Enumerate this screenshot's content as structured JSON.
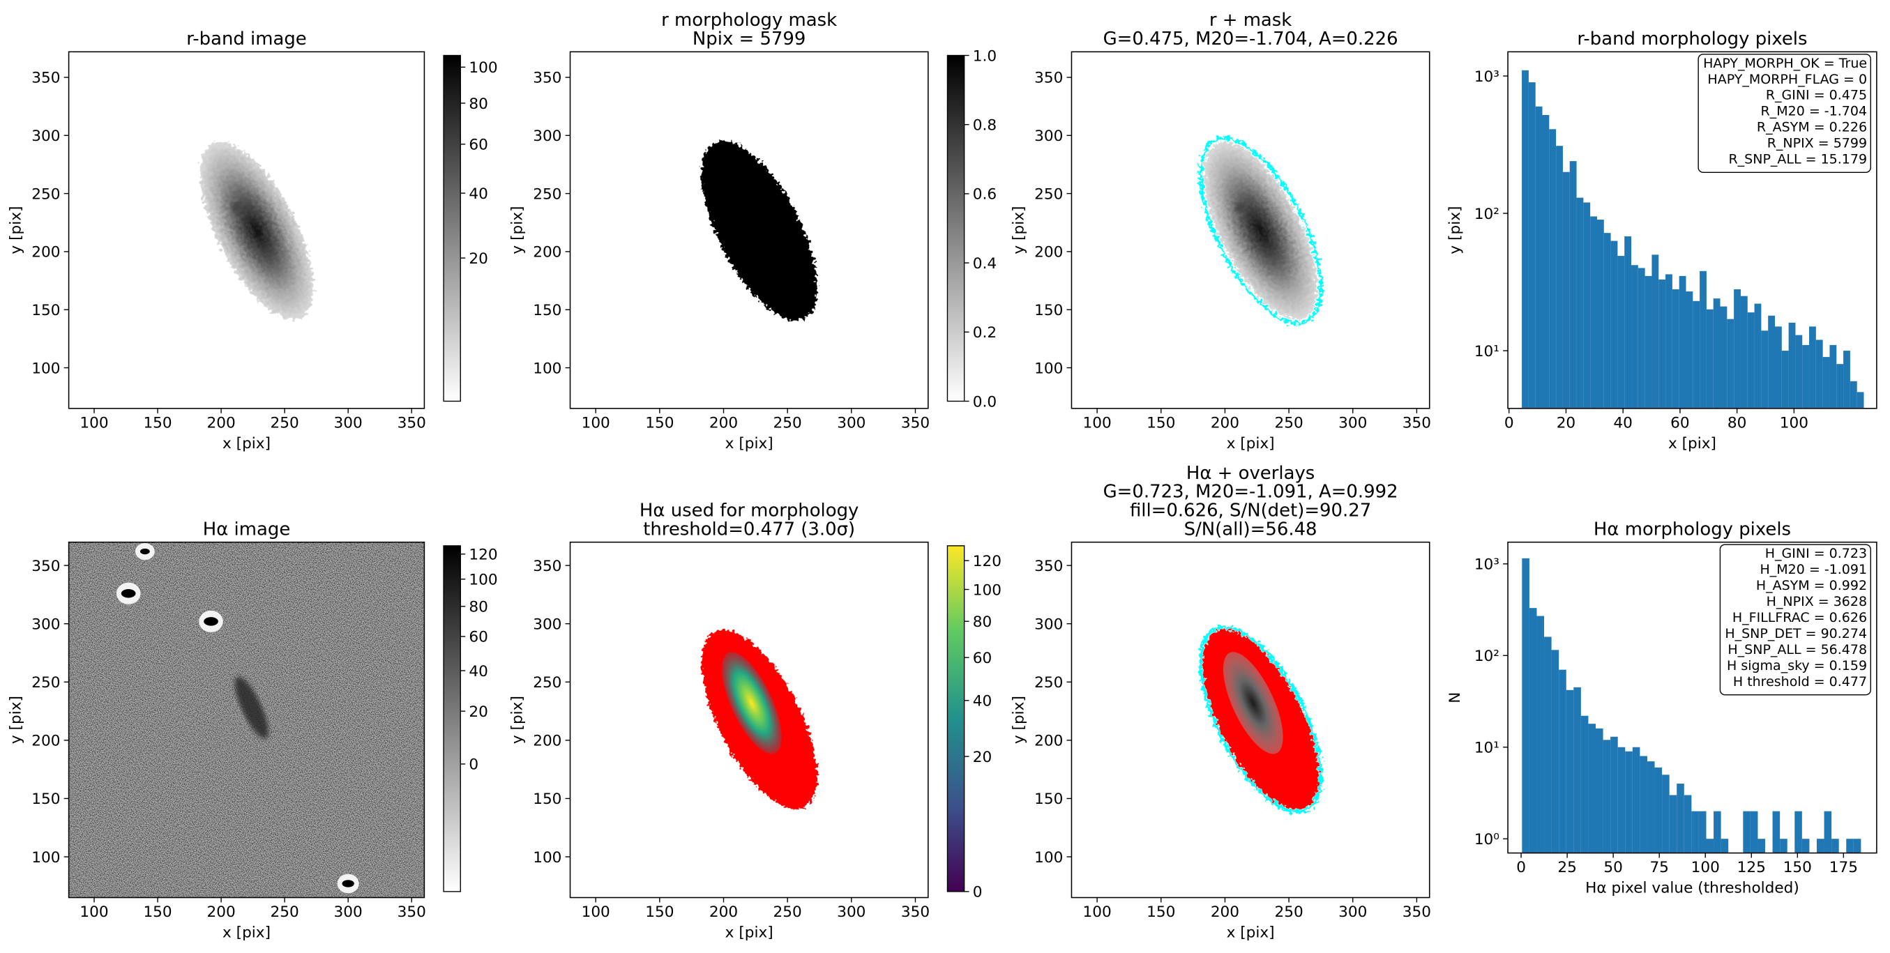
{
  "chart_data": [
    {
      "type": "image",
      "title": [
        "r-band image"
      ],
      "xlabel": "x [pix]",
      "ylabel": "y [pix]",
      "xlim": [
        80,
        360
      ],
      "ylim": [
        65,
        372
      ],
      "xticks": [
        100,
        150,
        200,
        250,
        300,
        350
      ],
      "yticks": [
        100,
        150,
        200,
        250,
        300,
        350
      ],
      "colorbar": {
        "cmap": "gray_r",
        "scale": "sqrt",
        "clim": [
          2,
          107
        ],
        "ticks": [
          20,
          40,
          60,
          80,
          100
        ]
      }
    },
    {
      "type": "image",
      "title": [
        "r morphology mask",
        "Npix = 5799"
      ],
      "xlabel": "x [pix]",
      "ylabel": "y [pix]",
      "xlim": [
        80,
        360
      ],
      "ylim": [
        65,
        372
      ],
      "xticks": [
        100,
        150,
        200,
        250,
        300,
        350
      ],
      "yticks": [
        100,
        150,
        200,
        250,
        300,
        350
      ],
      "colorbar": {
        "cmap": "binary",
        "scale": "linear",
        "clim": [
          0,
          1
        ],
        "ticks": [
          {
            "value": 0,
            "label": "0.0"
          },
          {
            "value": 0.2,
            "label": "0.2"
          },
          {
            "value": 0.4,
            "label": "0.4"
          },
          {
            "value": 0.6,
            "label": "0.6"
          },
          {
            "value": 0.8,
            "label": "0.8"
          },
          {
            "value": 1,
            "label": "1.0"
          }
        ]
      }
    },
    {
      "type": "image",
      "title": [
        "r + mask",
        "G=0.475, M20=-1.704, A=0.226"
      ],
      "xlabel": "x [pix]",
      "ylabel": "y [pix]",
      "xlim": [
        80,
        360
      ],
      "ylim": [
        65,
        372
      ],
      "xticks": [
        100,
        150,
        200,
        250,
        300,
        350
      ],
      "yticks": [
        100,
        150,
        200,
        250,
        300,
        350
      ],
      "overlay_color": "#00ffff"
    },
    {
      "type": "histogram",
      "title": [
        "r-band morphology pixels"
      ],
      "xlabel": "x [pix]",
      "ylabel": "y [pix]",
      "color": "#1f77b4",
      "log_y": true,
      "xlim": [
        -0.4,
        129
      ],
      "ylim": [
        3.8,
        1500
      ],
      "xticks": [
        0,
        20,
        40,
        60,
        80,
        100
      ],
      "yticks": [
        {
          "value": 10,
          "label": "10¹"
        },
        {
          "value": 100,
          "label": "10²"
        },
        {
          "value": 1000,
          "label": "10³"
        }
      ],
      "bins": [
        4.5,
        6.9,
        9.3,
        11.7,
        14.1,
        16.5,
        18.9,
        21.3,
        23.7,
        26.1,
        28.5,
        30.9,
        33.3,
        35.7,
        38.1,
        40.5,
        42.9,
        45.3,
        47.7,
        50.1,
        52.5,
        54.9,
        57.3,
        59.7,
        62.1,
        64.5,
        66.9,
        69.3,
        71.7,
        74.1,
        76.5,
        78.9,
        81.3,
        83.7,
        86.1,
        88.5,
        90.9,
        93.3,
        95.7,
        98.1,
        100.5,
        102.9,
        105.3,
        107.7,
        110.1,
        112.5,
        114.9,
        117.3,
        119.7,
        122.1,
        124.5
      ],
      "counts": [
        1100,
        900,
        600,
        520,
        410,
        310,
        200,
        240,
        130,
        120,
        95,
        90,
        72,
        63,
        49,
        68,
        42,
        40,
        35,
        50,
        33,
        36,
        28,
        35,
        27,
        23,
        38,
        20,
        24,
        21,
        17,
        28,
        25,
        19,
        22,
        14,
        18,
        15,
        10,
        16,
        13,
        11,
        15,
        12,
        9,
        11,
        8,
        10,
        6,
        5
      ],
      "legend_loc": "upper right",
      "annotation": [
        "HAPY_MORPH_OK = True",
        "HAPY_MORPH_FLAG = 0",
        "R_GINI = 0.475",
        "R_M20 = -1.704",
        "R_ASYM = 0.226",
        "R_NPIX = 5799",
        "R_SNP_ALL = 15.179"
      ]
    },
    {
      "type": "image",
      "title": [
        "Hα image"
      ],
      "xlabel": "x [pix]",
      "ylabel": "y [pix]",
      "xlim": [
        80,
        360
      ],
      "ylim": [
        65,
        370
      ],
      "xticks": [
        100,
        150,
        200,
        250,
        300,
        350
      ],
      "yticks": [
        100,
        150,
        200,
        250,
        300,
        350
      ],
      "colorbar": {
        "cmap": "gray_r",
        "scale": "sqrt",
        "clim": [
          -20,
          127
        ],
        "ticks": [
          0,
          20,
          40,
          60,
          80,
          100,
          120
        ]
      }
    },
    {
      "type": "image",
      "title": [
        "Hα used for morphology",
        "threshold=0.477 (3.0σ)"
      ],
      "xlabel": "x [pix]",
      "ylabel": "y [pix]",
      "xlim": [
        80,
        360
      ],
      "ylim": [
        65,
        370
      ],
      "xticks": [
        100,
        150,
        200,
        250,
        300,
        350
      ],
      "yticks": [
        100,
        150,
        200,
        250,
        300,
        350
      ],
      "overlay_color": "#ff0000",
      "colorbar": {
        "cmap": "viridis",
        "scale": "sqrt",
        "clim": [
          0,
          131
        ],
        "ticks": [
          0,
          20,
          40,
          60,
          80,
          100,
          120
        ]
      }
    },
    {
      "type": "image",
      "title": [
        "Hα + overlays",
        "G=0.723, M20=-1.091, A=0.992",
        "fill=0.626, S/N(det)=90.27",
        "S/N(all)=56.48"
      ],
      "xlabel": "x [pix]",
      "ylabel": "y [pix]",
      "xlim": [
        80,
        360
      ],
      "ylim": [
        65,
        370
      ],
      "xticks": [
        100,
        150,
        200,
        250,
        300,
        350
      ],
      "yticks": [
        100,
        150,
        200,
        250,
        300,
        350
      ],
      "overlay_color": "#ff0000"
    },
    {
      "type": "histogram",
      "title": [
        "Hα morphology pixels"
      ],
      "xlabel": "Hα pixel value (thresholded)",
      "ylabel": "N",
      "color": "#1f77b4",
      "log_y": true,
      "xlim": [
        -7.2,
        193
      ],
      "ylim": [
        0.7,
        1726
      ],
      "xticks": [
        0,
        25,
        50,
        75,
        100,
        125,
        150,
        175
      ],
      "yticks": [
        {
          "value": 1,
          "label": "10⁰"
        },
        {
          "value": 10,
          "label": "10¹"
        },
        {
          "value": 100,
          "label": "10²"
        },
        {
          "value": 1000,
          "label": "10³"
        }
      ],
      "bins": [
        0.477,
        4.477,
        8.477,
        12.477,
        16.477,
        20.477,
        24.477,
        28.477,
        32.477,
        36.477,
        40.477,
        44.477,
        48.477,
        52.477,
        56.477,
        60.477,
        64.477,
        68.477,
        72.477,
        76.477,
        80.477,
        84.477,
        88.477,
        92.477,
        96.477,
        100.477,
        104.477,
        108.477,
        112.477,
        116.477,
        120.477,
        124.477,
        128.477,
        132.477,
        136.477,
        140.477,
        144.477,
        148.477,
        152.477,
        156.477,
        160.477,
        164.477,
        168.477,
        172.477,
        176.477,
        180.477,
        184.477
      ],
      "counts": [
        1150,
        330,
        270,
        160,
        115,
        70,
        42,
        45,
        22,
        18,
        16,
        12,
        13,
        10,
        9,
        10,
        8,
        7,
        6,
        5,
        3,
        4,
        3,
        2,
        2,
        1,
        2,
        1,
        0,
        0,
        2,
        2,
        1,
        0,
        2,
        1,
        0,
        2,
        1,
        0,
        1,
        2,
        1,
        0,
        1,
        1
      ],
      "legend_loc": "upper right",
      "annotation": [
        "H_GINI = 0.723",
        "H_M20 = -1.091",
        "H_ASYM = 0.992",
        "H_NPIX = 3628",
        "H_FILLFRAC = 0.626",
        "H_SNP_DET = 90.274",
        "H_SNP_ALL = 56.478",
        "H sigma_sky = 0.159",
        "H threshold = 0.477"
      ]
    }
  ]
}
